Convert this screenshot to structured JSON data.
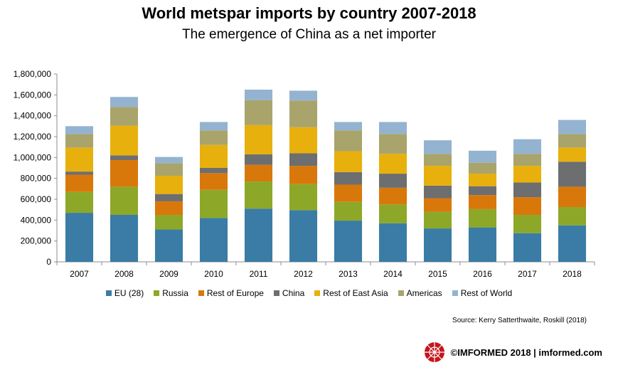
{
  "title": "World metspar imports by country 2007-2018",
  "subtitle": "The emergence of China as a net importer",
  "source": "Source: Kerry Satterthwaite, Roskill (2018)",
  "footer": {
    "text": "©IMFORMED 2018  | imformed.com",
    "logo_icon": "imformed-logo-icon"
  },
  "chart_data": {
    "type": "bar",
    "stacked": true,
    "categories": [
      "2007",
      "2008",
      "2009",
      "2010",
      "2011",
      "2012",
      "2013",
      "2014",
      "2015",
      "2016",
      "2017",
      "2018"
    ],
    "ylim": [
      0,
      1800000
    ],
    "yticks": [
      0,
      200000,
      400000,
      600000,
      800000,
      1000000,
      1200000,
      1400000,
      1600000,
      1800000
    ],
    "ytick_labels": [
      "0",
      "200,000",
      "400,000",
      "600,000",
      "800,000",
      "1,000,000",
      "1,200,000",
      "1,400,000",
      "1,600,000",
      "1,800,000"
    ],
    "grid": false,
    "legend_position": "bottom",
    "series": [
      {
        "name": "EU (28)",
        "color": "#3a7ca5",
        "values": [
          470000,
          450000,
          310000,
          420000,
          510000,
          495000,
          395000,
          370000,
          320000,
          330000,
          275000,
          350000
        ]
      },
      {
        "name": "Russia",
        "color": "#8da829",
        "values": [
          200000,
          270000,
          140000,
          270000,
          260000,
          250000,
          180000,
          180000,
          160000,
          175000,
          175000,
          175000
        ]
      },
      {
        "name": "Rest of Europe",
        "color": "#d9780a",
        "values": [
          165000,
          255000,
          130000,
          160000,
          160000,
          175000,
          165000,
          160000,
          130000,
          135000,
          170000,
          195000
        ]
      },
      {
        "name": "China",
        "color": "#6d6e70",
        "values": [
          30000,
          45000,
          70000,
          50000,
          100000,
          120000,
          120000,
          135000,
          120000,
          85000,
          140000,
          240000
        ]
      },
      {
        "name": "Rest of East Asia",
        "color": "#e8b00c",
        "values": [
          230000,
          285000,
          175000,
          220000,
          280000,
          250000,
          200000,
          190000,
          190000,
          120000,
          160000,
          135000
        ]
      },
      {
        "name": "Americas",
        "color": "#a9a46b",
        "values": [
          130000,
          180000,
          120000,
          140000,
          240000,
          255000,
          200000,
          190000,
          115000,
          105000,
          115000,
          130000
        ]
      },
      {
        "name": "Rest of World",
        "color": "#94b3d0",
        "values": [
          75000,
          95000,
          60000,
          80000,
          100000,
          95000,
          80000,
          115000,
          130000,
          115000,
          140000,
          135000
        ]
      }
    ]
  }
}
